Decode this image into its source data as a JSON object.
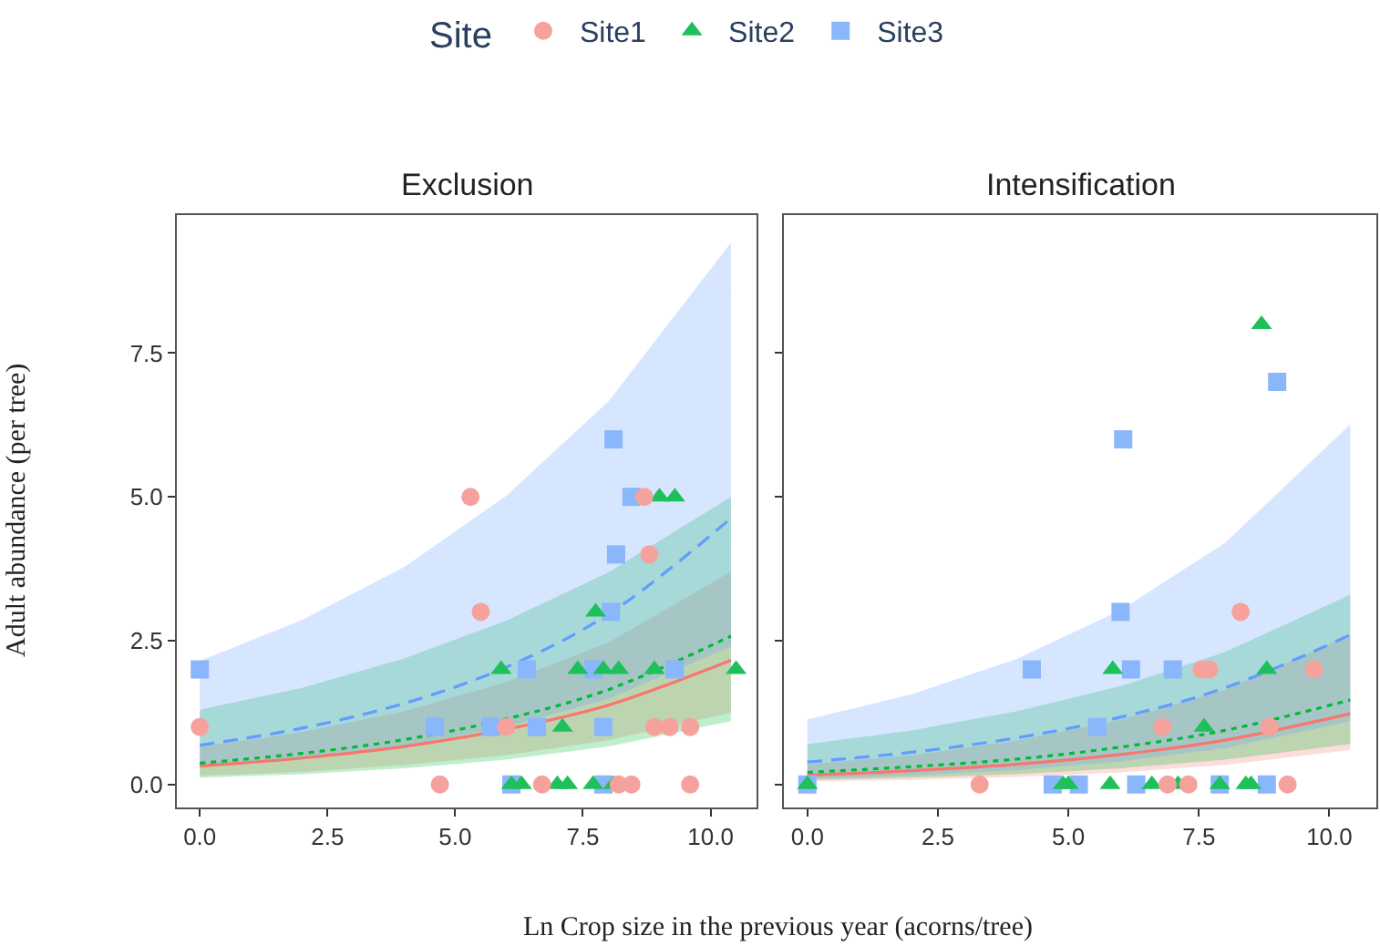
{
  "chart_data": [
    {
      "type": "scatter",
      "title": "Exclusion",
      "xlabel": "Ln Crop size in the previous year (acorns/tree)",
      "ylabel": "Adult abundance (per tree)",
      "legend_title": "Site",
      "legend": "top",
      "xlim": [
        -0.45,
        10.9
      ],
      "ylim": [
        -0.4,
        9.9
      ],
      "xticks": [
        {
          "value": 0,
          "label": "0.0"
        },
        {
          "value": 2.5,
          "label": "2.5"
        },
        {
          "value": 5,
          "label": "5.0"
        },
        {
          "value": 7.5,
          "label": "7.5"
        },
        {
          "value": 10,
          "label": "10.0"
        }
      ],
      "yticks": [
        {
          "value": 0,
          "label": "0.0"
        },
        {
          "value": 2.5,
          "label": "2.5"
        },
        {
          "value": 5,
          "label": "5.0"
        },
        {
          "value": 7.5,
          "label": "7.5"
        }
      ],
      "series": [
        {
          "name": "Site1",
          "type": "scatter",
          "marker": "circle",
          "color": "#f6a29c",
          "x": [
            0,
            5.3,
            5.5,
            4.7,
            6.0,
            6.7,
            8.2,
            8.45,
            9.6,
            8.7,
            8.8,
            8.9,
            9.2,
            9.6
          ],
          "values": [
            1,
            5,
            3,
            0,
            1,
            0,
            0,
            0,
            0,
            5,
            4,
            1,
            1,
            1
          ]
        },
        {
          "name": "Site2",
          "type": "scatter",
          "marker": "triangle",
          "color": "#1ec05c",
          "x": [
            5.9,
            6.1,
            6.3,
            7.0,
            7.2,
            7.7,
            8.1,
            7.1,
            7.4,
            7.9,
            8.2,
            7.75,
            8.9,
            9.0,
            9.3,
            10.5
          ],
          "values": [
            2,
            0,
            0,
            0,
            0,
            0,
            0,
            1,
            2,
            2,
            2,
            3,
            2,
            5,
            5,
            2
          ]
        },
        {
          "name": "Site3",
          "type": "scatter",
          "marker": "square",
          "color": "#8ab6fb",
          "x": [
            0,
            4.6,
            5.7,
            6.4,
            6.6,
            7.7,
            7.9,
            8.05,
            8.1,
            8.15,
            8.45,
            9.3,
            6.1,
            7.9
          ],
          "values": [
            2,
            1,
            1,
            2,
            1,
            2,
            1,
            3,
            6,
            4,
            5,
            2,
            0,
            0
          ]
        },
        {
          "type": "line",
          "line_style": "solid",
          "color": "#f8766d",
          "x": [
            0,
            2,
            4,
            6,
            8,
            10.4
          ],
          "values": [
            0.32,
            0.46,
            0.66,
            0.96,
            1.38,
            2.16
          ],
          "lower": [
            0.15,
            0.22,
            0.34,
            0.51,
            0.77,
            1.25
          ],
          "upper": [
            0.65,
            0.91,
            1.27,
            1.78,
            2.47,
            3.7
          ]
        },
        {
          "type": "line",
          "line_style": "dotted",
          "color": "#00ba38",
          "x": [
            0,
            2,
            4,
            6,
            8,
            10.4
          ],
          "values": [
            0.37,
            0.54,
            0.78,
            1.14,
            1.65,
            2.58
          ],
          "lower": [
            0.12,
            0.18,
            0.28,
            0.43,
            0.66,
            1.1
          ],
          "upper": [
            1.3,
            1.68,
            2.19,
            2.85,
            3.69,
            5.0
          ]
        },
        {
          "type": "line",
          "line_style": "dashed",
          "color": "#619cff",
          "x": [
            0,
            2,
            4,
            6,
            8,
            10.4
          ],
          "values": [
            0.68,
            0.98,
            1.41,
            2.04,
            2.96,
            4.63
          ],
          "lower": [
            0.3,
            0.45,
            0.67,
            1.0,
            1.49,
            2.4
          ],
          "upper": [
            2.15,
            2.86,
            3.78,
            5.02,
            6.66,
            9.42
          ]
        }
      ]
    },
    {
      "type": "scatter",
      "title": "Intensification",
      "tick_labels": "x",
      "xlim": [
        -0.45,
        10.9
      ],
      "ylim": [
        -0.4,
        9.9
      ],
      "xticks": [
        {
          "value": 0,
          "label": "0.0"
        },
        {
          "value": 2.5,
          "label": "2.5"
        },
        {
          "value": 5,
          "label": "5.0"
        },
        {
          "value": 7.5,
          "label": "7.5"
        },
        {
          "value": 10,
          "label": "10.0"
        }
      ],
      "yticks": [
        {
          "value": 0,
          "label": "0.0"
        },
        {
          "value": 2.5,
          "label": "2.5"
        },
        {
          "value": 5,
          "label": "5.0"
        },
        {
          "value": 7.5,
          "label": "7.5"
        }
      ],
      "series": [
        {
          "name": "Site1",
          "type": "scatter",
          "marker": "circle",
          "color": "#f6a29c",
          "x": [
            3.3,
            6.8,
            7.55,
            7.7,
            8.3,
            8.85,
            9.7,
            7.3,
            9.2,
            6.9
          ],
          "values": [
            0,
            1,
            2,
            2,
            3,
            1,
            2,
            0,
            0,
            0
          ]
        },
        {
          "name": "Site2",
          "type": "scatter",
          "marker": "triangle",
          "color": "#1ec05c",
          "x": [
            0,
            4.9,
            5.0,
            5.8,
            6.6,
            7.1,
            7.9,
            8.4,
            8.5,
            5.85,
            7.6,
            8.8,
            8.7
          ],
          "values": [
            0,
            0,
            0,
            0,
            0,
            0,
            0,
            0,
            0,
            2,
            1,
            2,
            8
          ]
        },
        {
          "name": "Site3",
          "type": "scatter",
          "marker": "square",
          "color": "#8ab6fb",
          "x": [
            0,
            4.7,
            5.2,
            6.3,
            4.3,
            5.55,
            6.0,
            6.05,
            6.2,
            7.0,
            7.9,
            8.8,
            9.0
          ],
          "values": [
            0,
            0,
            0,
            0,
            2,
            1,
            3,
            6,
            2,
            2,
            0,
            0,
            7
          ]
        },
        {
          "type": "line",
          "line_style": "solid",
          "color": "#f8766d",
          "x": [
            0,
            2,
            4,
            6,
            8,
            10.4
          ],
          "values": [
            0.16,
            0.24,
            0.35,
            0.52,
            0.77,
            1.23
          ],
          "lower": [
            0.05,
            0.08,
            0.13,
            0.21,
            0.34,
            0.6
          ],
          "upper": [
            0.35,
            0.51,
            0.76,
            1.12,
            1.64,
            2.6
          ]
        },
        {
          "type": "line",
          "line_style": "dotted",
          "color": "#00ba38",
          "x": [
            0,
            2,
            4,
            6,
            8,
            10.4
          ],
          "values": [
            0.21,
            0.31,
            0.44,
            0.65,
            0.94,
            1.47
          ],
          "lower": [
            0.08,
            0.12,
            0.18,
            0.28,
            0.43,
            0.7
          ],
          "upper": [
            0.7,
            0.94,
            1.27,
            1.71,
            2.3,
            3.3
          ]
        },
        {
          "type": "line",
          "line_style": "dashed",
          "color": "#619cff",
          "x": [
            0,
            2,
            4,
            6,
            8,
            10.4
          ],
          "values": [
            0.39,
            0.56,
            0.81,
            1.17,
            1.68,
            2.6
          ],
          "lower": [
            0.1,
            0.16,
            0.25,
            0.4,
            0.63,
            1.1
          ],
          "upper": [
            1.13,
            1.57,
            2.18,
            3.03,
            4.2,
            6.26
          ]
        }
      ]
    }
  ]
}
